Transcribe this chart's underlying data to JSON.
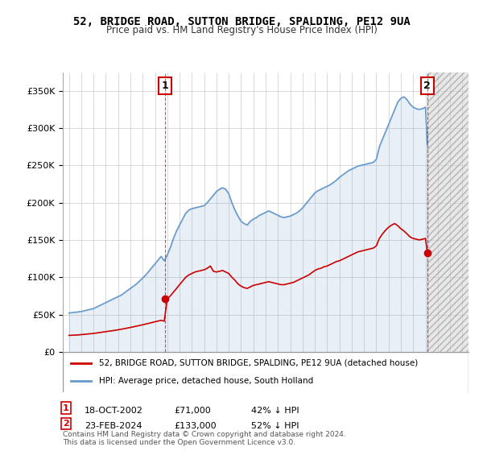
{
  "title": "52, BRIDGE ROAD, SUTTON BRIDGE, SPALDING, PE12 9UA",
  "subtitle": "Price paid vs. HM Land Registry's House Price Index (HPI)",
  "sale1_date": "18-OCT-2002",
  "sale1_price": 71000,
  "sale1_label": "42% ↓ HPI",
  "sale2_date": "23-FEB-2024",
  "sale2_price": 133000,
  "sale2_label": "52% ↓ HPI",
  "legend_red": "52, BRIDGE ROAD, SUTTON BRIDGE, SPALDING, PE12 9UA (detached house)",
  "legend_blue": "HPI: Average price, detached house, South Holland",
  "footnote": "Contains HM Land Registry data © Crown copyright and database right 2024.\nThis data is licensed under the Open Government Licence v3.0.",
  "red_color": "#cc0000",
  "blue_color": "#6699cc",
  "hatch_color": "#dddddd",
  "grid_color": "#cccccc",
  "bg_color": "#ffffff",
  "ylim": [
    0,
    375000
  ],
  "yticks": [
    0,
    50000,
    100000,
    150000,
    200000,
    250000,
    300000,
    350000
  ],
  "ytick_labels": [
    "£0",
    "£50K",
    "£100K",
    "£150K",
    "£200K",
    "£250K",
    "£300K",
    "£350K"
  ],
  "xlim_start": 1994.5,
  "xlim_end": 2027.5,
  "sale1_x": 2002.8,
  "sale2_x": 2024.15,
  "hpi_years": [
    1995,
    1995.25,
    1995.5,
    1995.75,
    1996,
    1996.25,
    1996.5,
    1996.75,
    1997,
    1997.25,
    1997.5,
    1997.75,
    1998,
    1998.25,
    1998.5,
    1998.75,
    1999,
    1999.25,
    1999.5,
    1999.75,
    2000,
    2000.25,
    2000.5,
    2000.75,
    2001,
    2001.25,
    2001.5,
    2001.75,
    2002,
    2002.25,
    2002.5,
    2002.75,
    2003,
    2003.25,
    2003.5,
    2003.75,
    2004,
    2004.25,
    2004.5,
    2004.75,
    2005,
    2005.25,
    2005.5,
    2005.75,
    2006,
    2006.25,
    2006.5,
    2006.75,
    2007,
    2007.25,
    2007.5,
    2007.75,
    2008,
    2008.25,
    2008.5,
    2008.75,
    2009,
    2009.25,
    2009.5,
    2009.75,
    2010,
    2010.25,
    2010.5,
    2010.75,
    2011,
    2011.25,
    2011.5,
    2011.75,
    2012,
    2012.25,
    2012.5,
    2012.75,
    2013,
    2013.25,
    2013.5,
    2013.75,
    2014,
    2014.25,
    2014.5,
    2014.75,
    2015,
    2015.25,
    2015.5,
    2015.75,
    2016,
    2016.25,
    2016.5,
    2016.75,
    2017,
    2017.25,
    2017.5,
    2017.75,
    2018,
    2018.25,
    2018.5,
    2018.75,
    2019,
    2019.25,
    2019.5,
    2019.75,
    2020,
    2020.25,
    2020.5,
    2020.75,
    2021,
    2021.25,
    2021.5,
    2021.75,
    2022,
    2022.25,
    2022.5,
    2022.75,
    2023,
    2023.25,
    2023.5,
    2023.75,
    2024,
    2024.15
  ],
  "hpi_values": [
    52000,
    52500,
    53000,
    53500,
    54000,
    55000,
    56000,
    57000,
    58000,
    60000,
    62000,
    64000,
    66000,
    68000,
    70000,
    72000,
    74000,
    76000,
    79000,
    82000,
    85000,
    88000,
    91000,
    95000,
    99000,
    103000,
    108000,
    113000,
    118000,
    123000,
    128000,
    122000,
    130000,
    140000,
    152000,
    162000,
    170000,
    178000,
    186000,
    190000,
    192000,
    193000,
    194000,
    195000,
    196000,
    200000,
    205000,
    210000,
    215000,
    218000,
    220000,
    218000,
    212000,
    200000,
    190000,
    182000,
    175000,
    172000,
    170000,
    175000,
    178000,
    180000,
    183000,
    185000,
    187000,
    189000,
    187000,
    185000,
    183000,
    181000,
    180000,
    181000,
    182000,
    184000,
    186000,
    189000,
    193000,
    198000,
    203000,
    208000,
    213000,
    216000,
    218000,
    220000,
    222000,
    224000,
    227000,
    230000,
    234000,
    237000,
    240000,
    243000,
    245000,
    247000,
    249000,
    250000,
    251000,
    252000,
    253000,
    254000,
    258000,
    275000,
    285000,
    295000,
    305000,
    315000,
    325000,
    335000,
    340000,
    342000,
    338000,
    332000,
    328000,
    326000,
    325000,
    326000,
    328000,
    278000
  ],
  "red_years": [
    1995,
    1995.25,
    1995.5,
    1995.75,
    1996,
    1996.25,
    1996.5,
    1996.75,
    1997,
    1997.25,
    1997.5,
    1997.75,
    1998,
    1998.25,
    1998.5,
    1998.75,
    1999,
    1999.25,
    1999.5,
    1999.75,
    2000,
    2000.25,
    2000.5,
    2000.75,
    2001,
    2001.25,
    2001.5,
    2001.75,
    2002,
    2002.25,
    2002.5,
    2002.75,
    2003,
    2003.25,
    2003.5,
    2003.75,
    2004,
    2004.25,
    2004.5,
    2004.75,
    2005,
    2005.25,
    2005.5,
    2005.75,
    2006,
    2006.25,
    2006.5,
    2006.75,
    2007,
    2007.25,
    2007.5,
    2007.75,
    2008,
    2008.25,
    2008.5,
    2008.75,
    2009,
    2009.25,
    2009.5,
    2009.75,
    2010,
    2010.25,
    2010.5,
    2010.75,
    2011,
    2011.25,
    2011.5,
    2011.75,
    2012,
    2012.25,
    2012.5,
    2012.75,
    2013,
    2013.25,
    2013.5,
    2013.75,
    2014,
    2014.25,
    2014.5,
    2014.75,
    2015,
    2015.25,
    2015.5,
    2015.75,
    2016,
    2016.25,
    2016.5,
    2016.75,
    2017,
    2017.25,
    2017.5,
    2017.75,
    2018,
    2018.25,
    2018.5,
    2018.75,
    2019,
    2019.25,
    2019.5,
    2019.75,
    2020,
    2020.25,
    2020.5,
    2020.75,
    2021,
    2021.25,
    2021.5,
    2021.75,
    2022,
    2022.25,
    2022.5,
    2022.75,
    2023,
    2023.25,
    2023.5,
    2023.75,
    2024,
    2024.15
  ],
  "red_values": [
    22000,
    22200,
    22400,
    22600,
    23000,
    23400,
    23800,
    24200,
    24600,
    25200,
    25800,
    26400,
    27000,
    27600,
    28200,
    28800,
    29500,
    30200,
    31000,
    31800,
    32600,
    33500,
    34400,
    35300,
    36200,
    37200,
    38200,
    39200,
    40200,
    41200,
    42200,
    41000,
    71000,
    75000,
    80000,
    85000,
    90000,
    95000,
    100000,
    103000,
    105000,
    107000,
    108000,
    109000,
    110000,
    112000,
    115000,
    108000,
    107000,
    108000,
    109000,
    107000,
    105000,
    100000,
    96000,
    91000,
    88000,
    86000,
    85000,
    87000,
    89000,
    90000,
    91000,
    92000,
    93000,
    94000,
    93000,
    92000,
    91000,
    90000,
    90000,
    91000,
    92000,
    93000,
    95000,
    97000,
    99000,
    101000,
    103000,
    106000,
    109000,
    111000,
    112000,
    114000,
    115000,
    117000,
    119000,
    121000,
    122000,
    124000,
    126000,
    128000,
    130000,
    132000,
    134000,
    135000,
    136000,
    137000,
    138000,
    139000,
    142000,
    152000,
    158000,
    163000,
    167000,
    170000,
    172000,
    169000,
    165000,
    162000,
    158000,
    154000,
    152000,
    151000,
    150000,
    151000,
    152000,
    133000
  ],
  "xticks": [
    1995,
    1996,
    1997,
    1998,
    1999,
    2000,
    2001,
    2002,
    2003,
    2004,
    2005,
    2006,
    2007,
    2008,
    2009,
    2010,
    2011,
    2012,
    2013,
    2014,
    2015,
    2016,
    2017,
    2018,
    2019,
    2020,
    2021,
    2022,
    2023,
    2024,
    2025,
    2026,
    2027
  ]
}
